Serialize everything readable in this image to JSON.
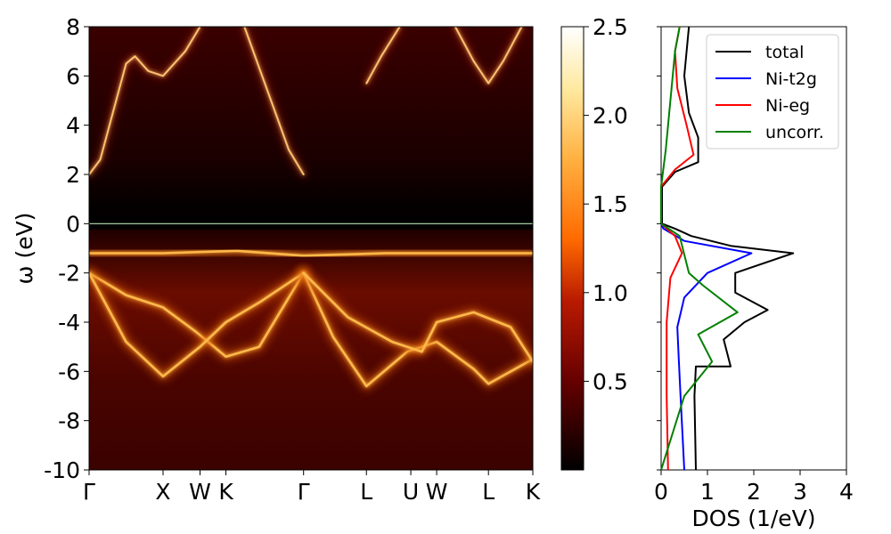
{
  "chart_data": [
    {
      "type": "heatmap",
      "ylabel": "ω (eV)",
      "ylim": [
        -10,
        8
      ],
      "y_ticks": [
        "8",
        "6",
        "4",
        "2",
        "0",
        "-2",
        "-4",
        "-6",
        "-8",
        "-10"
      ],
      "x_ticks": [
        "Γ",
        "X",
        "W",
        "K",
        "Γ",
        "L",
        "U",
        "W",
        "L",
        "K"
      ],
      "kpath_positions": [
        0,
        1.0,
        1.5,
        1.85,
        2.9,
        3.75,
        4.35,
        4.7,
        5.4,
        6.0
      ],
      "fermi_level": 0,
      "colormap": "afmhot",
      "bands": [
        {
          "name": "gap_conduction",
          "points": [
            [
              0,
              2.0
            ],
            [
              0.15,
              2.6
            ],
            [
              0.5,
              6.5
            ],
            [
              0.62,
              6.8
            ],
            [
              0.8,
              6.2
            ],
            [
              1.0,
              6.0
            ],
            [
              1.3,
              7.0
            ],
            [
              1.5,
              8.0
            ]
          ]
        },
        {
          "name": "gamma_parabola",
          "points": [
            [
              2.1,
              8.0
            ],
            [
              2.4,
              5.5
            ],
            [
              2.7,
              3.0
            ],
            [
              2.9,
              2.0
            ]
          ]
        },
        {
          "name": "L_band",
          "points": [
            [
              3.75,
              5.7
            ],
            [
              3.95,
              6.8
            ],
            [
              4.2,
              8.0
            ]
          ]
        },
        {
          "name": "L2_band",
          "points": [
            [
              4.95,
              8.0
            ],
            [
              5.2,
              6.6
            ],
            [
              5.4,
              5.7
            ],
            [
              5.6,
              6.6
            ],
            [
              5.85,
              8.0
            ]
          ]
        },
        {
          "name": "flat_top",
          "points": [
            [
              0,
              -1.2
            ],
            [
              1.0,
              -1.2
            ],
            [
              2.0,
              -1.1
            ],
            [
              2.9,
              -1.3
            ],
            [
              4.0,
              -1.2
            ],
            [
              6.0,
              -1.2
            ]
          ]
        },
        {
          "name": "v_upper",
          "points": [
            [
              0,
              -2.0
            ],
            [
              0.5,
              -2.9
            ],
            [
              1.0,
              -3.4
            ],
            [
              1.45,
              -4.4
            ],
            [
              1.85,
              -5.4
            ],
            [
              2.3,
              -5.0
            ],
            [
              2.9,
              -2.0
            ]
          ]
        },
        {
          "name": "v_lower",
          "points": [
            [
              0,
              -2.0
            ],
            [
              0.5,
              -4.8
            ],
            [
              1.0,
              -6.2
            ],
            [
              1.5,
              -5.0
            ],
            [
              1.85,
              -4.0
            ],
            [
              2.3,
              -3.2
            ],
            [
              2.9,
              -2.0
            ]
          ]
        },
        {
          "name": "gamma_down",
          "points": [
            [
              2.9,
              -2.0
            ],
            [
              3.3,
              -4.6
            ],
            [
              3.75,
              -6.6
            ],
            [
              4.3,
              -5.2
            ],
            [
              4.7,
              -4.8
            ],
            [
              5.2,
              -5.9
            ],
            [
              5.4,
              -6.5
            ],
            [
              6.0,
              -5.5
            ]
          ]
        },
        {
          "name": "gamma_mid",
          "points": [
            [
              2.9,
              -2.0
            ],
            [
              3.5,
              -3.8
            ],
            [
              4.1,
              -4.8
            ],
            [
              4.5,
              -5.2
            ],
            [
              4.7,
              -4.0
            ],
            [
              5.2,
              -3.6
            ],
            [
              5.7,
              -4.2
            ],
            [
              6.0,
              -5.6
            ]
          ]
        }
      ]
    },
    {
      "type": "colorbar",
      "range": [
        0.0,
        2.5
      ],
      "tick_labels": [
        "2.5",
        "2.0",
        "1.5",
        "1.0",
        "0.5"
      ],
      "tick_values": [
        2.5,
        2.0,
        1.5,
        1.0,
        0.5
      ]
    },
    {
      "type": "line",
      "xlabel": "DOS (1/eV)",
      "xlim": [
        0,
        4
      ],
      "ylim": [
        -10,
        8
      ],
      "x_ticks": [
        "0",
        "1",
        "2",
        "3",
        "4"
      ],
      "legend_position": "top-right",
      "series": [
        {
          "name": "total",
          "color": "#000000",
          "points": [
            [
              0.75,
              -10
            ],
            [
              0.72,
              -7
            ],
            [
              0.75,
              -5.8
            ],
            [
              1.5,
              -5.8
            ],
            [
              1.35,
              -4.7
            ],
            [
              1.8,
              -4.0
            ],
            [
              2.3,
              -3.5
            ],
            [
              1.6,
              -2.8
            ],
            [
              1.6,
              -2.0
            ],
            [
              2.85,
              -1.2
            ],
            [
              1.5,
              -0.9
            ],
            [
              0.65,
              -0.5
            ],
            [
              0.3,
              -0.2
            ],
            [
              0.02,
              0
            ],
            [
              0.02,
              1.5
            ],
            [
              0.3,
              2.1
            ],
            [
              0.8,
              2.5
            ],
            [
              0.8,
              3.5
            ],
            [
              0.6,
              4.5
            ],
            [
              0.5,
              6.0
            ],
            [
              0.55,
              7.0
            ],
            [
              0.6,
              8.0
            ]
          ]
        },
        {
          "name": "Ni-t2g",
          "color": "#0000ff",
          "points": [
            [
              0.5,
              -10
            ],
            [
              0.42,
              -7
            ],
            [
              0.38,
              -5.5
            ],
            [
              0.35,
              -4.2
            ],
            [
              0.5,
              -3.0
            ],
            [
              1.0,
              -2.0
            ],
            [
              1.95,
              -1.2
            ],
            [
              0.5,
              -0.7
            ],
            [
              0.05,
              -0.2
            ],
            [
              0,
              0
            ]
          ]
        },
        {
          "name": "Ni-eg",
          "color": "#ff0000",
          "points": [
            [
              0.15,
              -10
            ],
            [
              0.12,
              -7
            ],
            [
              0.12,
              -4.0
            ],
            [
              0.2,
              -2.2
            ],
            [
              0.45,
              -1.2
            ],
            [
              0.3,
              -0.5
            ],
            [
              0,
              0
            ],
            [
              0,
              1.5
            ],
            [
              0.3,
              2.2
            ],
            [
              0.7,
              2.8
            ],
            [
              0.55,
              4.0
            ],
            [
              0.35,
              5.5
            ],
            [
              0.3,
              7.0
            ],
            [
              0.4,
              8.0
            ]
          ]
        },
        {
          "name": "uncorr.",
          "color": "#008000",
          "points": [
            [
              0,
              -10
            ],
            [
              0.25,
              -8.5
            ],
            [
              0.5,
              -7.0
            ],
            [
              1.1,
              -5.6
            ],
            [
              0.8,
              -4.5
            ],
            [
              1.65,
              -3.6
            ],
            [
              0.9,
              -2.5
            ],
            [
              0.6,
              -2.0
            ],
            [
              0.4,
              -0.5
            ],
            [
              0,
              0
            ],
            [
              0,
              1.5
            ],
            [
              0.1,
              3.0
            ],
            [
              0.2,
              5.0
            ],
            [
              0.3,
              7.0
            ],
            [
              0.4,
              8.0
            ]
          ]
        }
      ]
    }
  ]
}
